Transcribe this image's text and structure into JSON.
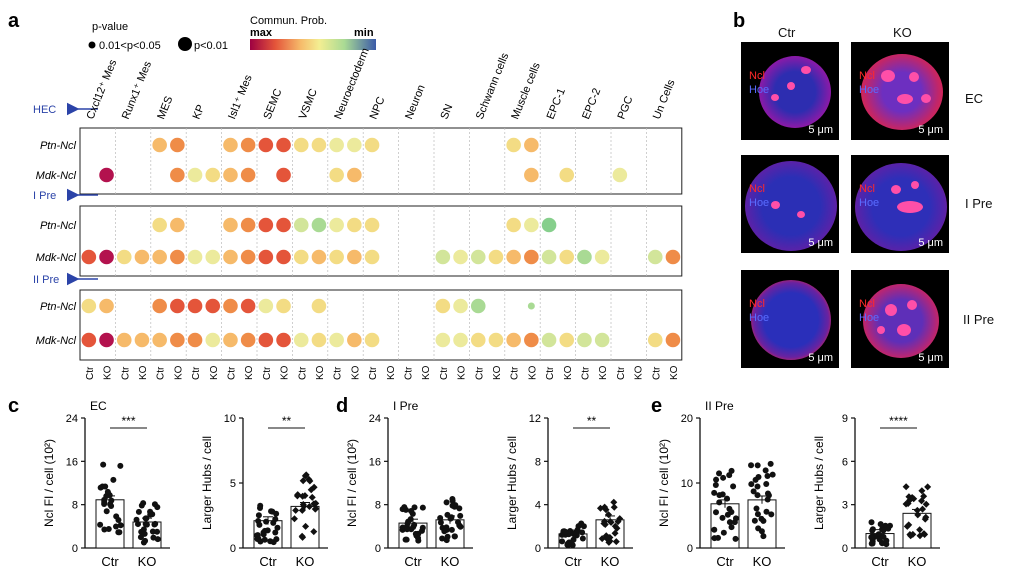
{
  "panels": {
    "a": "a",
    "b": "b",
    "c": "c",
    "d": "d",
    "e": "e"
  },
  "legend": {
    "pvalue_title": "p-value",
    "pvalue_small": "0.01<p<0.05",
    "pvalue_large": "p<0.01",
    "prob_title": "Commun. Prob.",
    "prob_max": "max",
    "prob_min": "min"
  },
  "celltypes": [
    "Cxcl12⁺ Mes",
    "Runx1⁺ Mes",
    "MES",
    "KP",
    "Isl1⁺ Mes",
    "SEMC",
    "VSMC",
    "Neuroectoderm",
    "NPC",
    "Neuron",
    "SN",
    "Schwann cells",
    "Muscle cells",
    "EPC-1",
    "EPC-2",
    "PGC",
    "Un Cells"
  ],
  "conditions": [
    "Ctr",
    "KO"
  ],
  "stages": [
    "HEC",
    "I Pre",
    "II Pre"
  ],
  "pairs": [
    "Ptn-Ncl",
    "Mdk-Ncl"
  ],
  "colors": {
    "dark": "#b3124e",
    "red": "#e4553a",
    "orange": "#ef8c48",
    "lorange": "#f6ba6a",
    "yellow": "#f3dc84",
    "lyellow": "#ecea9c",
    "ygreen": "#d2e59a",
    "green": "#a9da94",
    "mgreen": "#86cf8c"
  },
  "chart_data": [
    {
      "type": "scatter",
      "panel": "a",
      "note": "bubble plot; column index = celltype*2 + condition (0=Ctr,1=KO)",
      "cells": [
        {
          "stage": 0,
          "pair": 0,
          "points": [
            [
              4,
              "lorange"
            ],
            [
              5,
              "orange"
            ],
            [
              8,
              "lorange"
            ],
            [
              9,
              "orange"
            ],
            [
              10,
              "red"
            ],
            [
              11,
              "red"
            ],
            [
              12,
              "yellow"
            ],
            [
              13,
              "yellow"
            ],
            [
              14,
              "lyellow"
            ],
            [
              15,
              "lyellow"
            ],
            [
              16,
              "yellow"
            ],
            [
              24,
              "yellow"
            ],
            [
              25,
              "lorange"
            ]
          ]
        },
        {
          "stage": 0,
          "pair": 1,
          "points": [
            [
              1,
              "dark"
            ],
            [
              5,
              "orange"
            ],
            [
              6,
              "lyellow"
            ],
            [
              7,
              "yellow"
            ],
            [
              8,
              "lorange"
            ],
            [
              9,
              "orange"
            ],
            [
              11,
              "red"
            ],
            [
              14,
              "yellow"
            ],
            [
              15,
              "lorange"
            ],
            [
              25,
              "lorange"
            ],
            [
              27,
              "yellow"
            ],
            [
              30,
              "lyellow"
            ]
          ]
        },
        {
          "stage": 1,
          "pair": 0,
          "points": [
            [
              4,
              "yellow"
            ],
            [
              5,
              "lorange"
            ],
            [
              8,
              "lorange"
            ],
            [
              9,
              "orange"
            ],
            [
              10,
              "red"
            ],
            [
              11,
              "red"
            ],
            [
              12,
              "ygreen"
            ],
            [
              13,
              "green"
            ],
            [
              14,
              "lyellow"
            ],
            [
              15,
              "yellow"
            ],
            [
              16,
              "yellow"
            ],
            [
              24,
              "yellow"
            ],
            [
              25,
              "lyellow"
            ],
            [
              26,
              "mgreen"
            ]
          ]
        },
        {
          "stage": 1,
          "pair": 1,
          "points": [
            [
              0,
              "red"
            ],
            [
              1,
              "dark"
            ],
            [
              2,
              "yellow"
            ],
            [
              3,
              "lorange"
            ],
            [
              4,
              "lorange"
            ],
            [
              5,
              "orange"
            ],
            [
              6,
              "lyellow"
            ],
            [
              7,
              "lyellow"
            ],
            [
              8,
              "lorange"
            ],
            [
              9,
              "orange"
            ],
            [
              10,
              "red"
            ],
            [
              11,
              "red"
            ],
            [
              12,
              "yellow"
            ],
            [
              13,
              "lorange"
            ],
            [
              14,
              "yellow"
            ],
            [
              15,
              "lorange"
            ],
            [
              16,
              "yellow"
            ],
            [
              20,
              "ygreen"
            ],
            [
              21,
              "lyellow"
            ],
            [
              22,
              "ygreen"
            ],
            [
              23,
              "yellow"
            ],
            [
              24,
              "lorange"
            ],
            [
              25,
              "orange"
            ],
            [
              26,
              "ygreen"
            ],
            [
              27,
              "yellow"
            ],
            [
              28,
              "green"
            ],
            [
              29,
              "lyellow"
            ],
            [
              32,
              "ygreen"
            ],
            [
              33,
              "orange"
            ]
          ]
        },
        {
          "stage": 2,
          "pair": 0,
          "points": [
            [
              0,
              "yellow"
            ],
            [
              1,
              "lorange"
            ],
            [
              4,
              "orange"
            ],
            [
              5,
              "red"
            ],
            [
              6,
              "red"
            ],
            [
              7,
              "red"
            ],
            [
              8,
              "orange"
            ],
            [
              9,
              "red"
            ],
            [
              10,
              "lyellow"
            ],
            [
              11,
              "yellow"
            ],
            [
              13,
              "yellow"
            ],
            [
              20,
              "yellow"
            ],
            [
              21,
              "lyellow"
            ],
            [
              22,
              "green"
            ],
            [
              25,
              "green"
            ]
          ]
        },
        {
          "stage": 2,
          "pair": 1,
          "points": [
            [
              0,
              "red"
            ],
            [
              1,
              "dark"
            ],
            [
              2,
              "lorange"
            ],
            [
              3,
              "lorange"
            ],
            [
              4,
              "lorange"
            ],
            [
              5,
              "orange"
            ],
            [
              6,
              "orange"
            ],
            [
              7,
              "lyellow"
            ],
            [
              8,
              "lorange"
            ],
            [
              9,
              "orange"
            ],
            [
              10,
              "red"
            ],
            [
              11,
              "red"
            ],
            [
              12,
              "lyellow"
            ],
            [
              13,
              "yellow"
            ],
            [
              14,
              "lyellow"
            ],
            [
              15,
              "lorange"
            ],
            [
              16,
              "yellow"
            ],
            [
              20,
              "lyellow"
            ],
            [
              21,
              "lyellow"
            ],
            [
              22,
              "yellow"
            ],
            [
              23,
              "yellow"
            ],
            [
              24,
              "lorange"
            ],
            [
              25,
              "orange"
            ],
            [
              26,
              "ygreen"
            ],
            [
              27,
              "yellow"
            ],
            [
              28,
              "ygreen"
            ],
            [
              29,
              "ygreen"
            ],
            [
              32,
              "yellow"
            ],
            [
              33,
              "orange"
            ]
          ]
        }
      ]
    },
    {
      "type": "bar",
      "panel": "c",
      "stage": "EC",
      "ylabel": "Ncl FI / cell (10²)",
      "ylim": [
        0,
        24
      ],
      "ticks": [
        "0",
        "8",
        "16",
        "24"
      ],
      "categories": [
        "Ctr",
        "KO"
      ],
      "values": [
        8.9,
        4.8
      ],
      "sig": "***"
    },
    {
      "type": "bar",
      "panel": "c",
      "ylabel": "Larger Hubs / cell",
      "ylim": [
        0,
        10
      ],
      "ticks": [
        "0",
        "5",
        "10"
      ],
      "categories": [
        "Ctr",
        "KO"
      ],
      "values": [
        2.1,
        3.2
      ],
      "sig": "**"
    },
    {
      "type": "bar",
      "panel": "d",
      "stage": "I Pre",
      "ylabel": "Ncl FI / cell (10²)",
      "ylim": [
        0,
        24
      ],
      "ticks": [
        "0",
        "8",
        "16",
        "24"
      ],
      "categories": [
        "Ctr",
        "KO"
      ],
      "values": [
        4.6,
        5.2
      ],
      "sig": ""
    },
    {
      "type": "bar",
      "panel": "d",
      "ylabel": "Larger Hubs / cell",
      "ylim": [
        0,
        12
      ],
      "ticks": [
        "0",
        "4",
        "8",
        "12"
      ],
      "categories": [
        "Ctr",
        "KO"
      ],
      "values": [
        1.3,
        2.6
      ],
      "sig": "**"
    },
    {
      "type": "bar",
      "panel": "e",
      "stage": "II Pre",
      "ylabel": "Ncl FI / cell (10²)",
      "ylim": [
        0,
        20
      ],
      "ticks": [
        "0",
        "10",
        "20"
      ],
      "categories": [
        "Ctr",
        "KO"
      ],
      "values": [
        6.8,
        7.4
      ],
      "sig": ""
    },
    {
      "type": "bar",
      "panel": "e",
      "ylabel": "Larger Hubs / cell",
      "ylim": [
        0,
        9
      ],
      "ticks": [
        "0",
        "3",
        "6",
        "9"
      ],
      "categories": [
        "Ctr",
        "KO"
      ],
      "values": [
        1.0,
        2.4
      ],
      "sig": "****"
    }
  ],
  "micro": {
    "columns": [
      "Ctr",
      "KO"
    ],
    "rows": [
      "EC",
      "I Pre",
      "II Pre"
    ],
    "stain_red": "Ncl",
    "stain_blue": "Hoe",
    "scale": "5 μm"
  }
}
